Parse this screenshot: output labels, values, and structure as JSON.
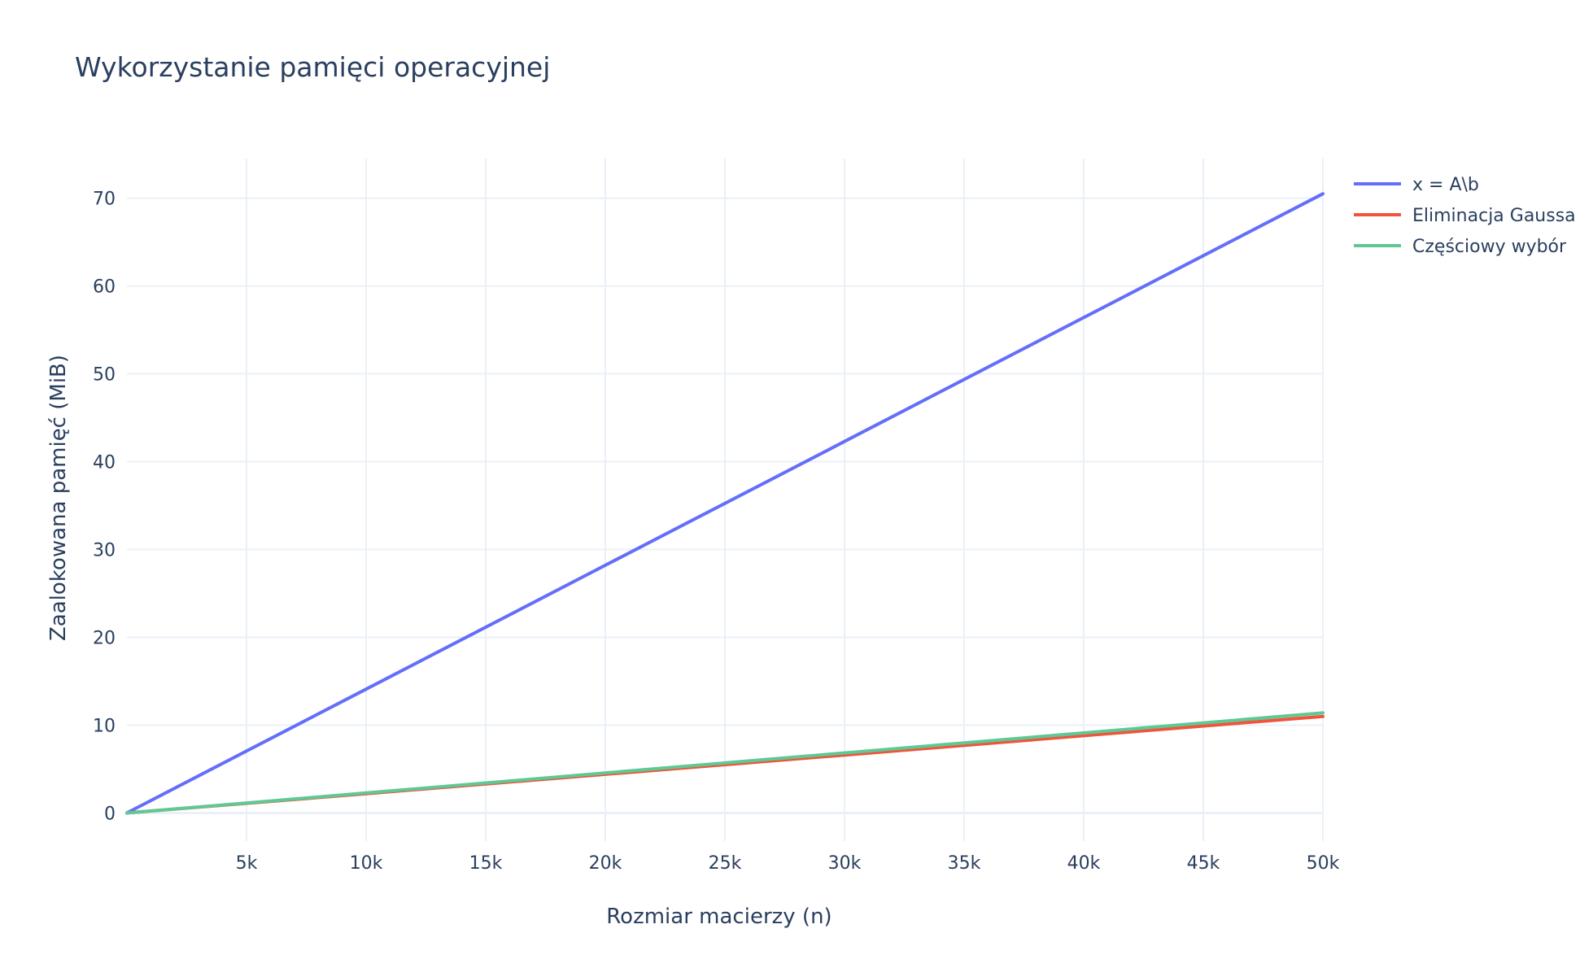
{
  "chart_data": {
    "type": "line",
    "title": "Wykorzystanie pamięci operacyjnej",
    "xlabel": "Rozmiar macierzy (n)",
    "ylabel": "Zaalokowana pamięć (MiB)",
    "xlim": [
      0,
      50000
    ],
    "ylim": [
      -3.2,
      74.5
    ],
    "xticks": [
      5000,
      10000,
      15000,
      20000,
      25000,
      30000,
      35000,
      40000,
      45000,
      50000
    ],
    "xtick_labels": [
      "5k",
      "10k",
      "15k",
      "20k",
      "25k",
      "30k",
      "35k",
      "40k",
      "45k",
      "50k"
    ],
    "yticks": [
      0,
      10,
      20,
      30,
      40,
      50,
      60,
      70
    ],
    "ytick_labels": [
      "0",
      "10",
      "20",
      "30",
      "40",
      "50",
      "60",
      "70"
    ],
    "grid": true,
    "legend_position": "top-right",
    "x": [
      0,
      10000,
      20000,
      30000,
      40000,
      50000
    ],
    "series": [
      {
        "name": "x = A\\b",
        "color": "#636efa",
        "values": [
          0,
          14.1,
          28.2,
          42.3,
          56.4,
          70.5
        ]
      },
      {
        "name": "Eliminacja Gaussa",
        "color": "#ef553b",
        "values": [
          0,
          2.2,
          4.4,
          6.6,
          8.8,
          11.0
        ]
      },
      {
        "name": "Częściowy wybór",
        "color": "#5fc894",
        "values": [
          0,
          2.28,
          4.56,
          6.84,
          9.12,
          11.4
        ]
      }
    ]
  }
}
